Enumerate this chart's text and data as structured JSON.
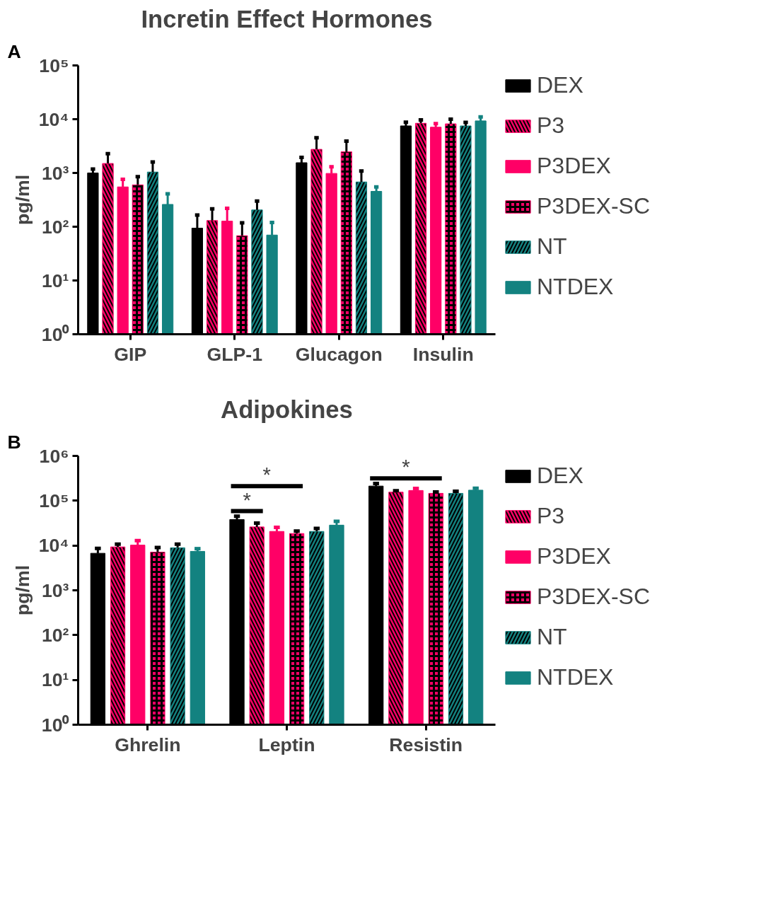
{
  "chart_data": [
    {
      "type": "bar",
      "title": "Incretin Effect Hormones",
      "ylabel": "pg/ml",
      "annotations": [
        "A"
      ],
      "categories": [
        "GIP",
        "GLP-1",
        "Glucagon",
        "Insulin"
      ],
      "log": true,
      "ylim": [
        1,
        100000
      ],
      "yticks": [
        {
          "value": 1,
          "label": "10⁰"
        },
        {
          "value": 10,
          "label": "10¹"
        },
        {
          "value": 100,
          "label": "10²"
        },
        {
          "value": 1000,
          "label": "10³"
        },
        {
          "value": 10000,
          "label": "10⁴"
        },
        {
          "value": 100000,
          "label": "10⁵"
        }
      ],
      "grid": false,
      "legend": "right",
      "series": [
        {
          "name": "DEX",
          "color": "#000000",
          "values": [
            1000,
            94,
            1550,
            7500
          ],
          "errors": [
            [
              1000,
              1180
            ],
            [
              94,
              165
            ],
            [
              1550,
              1950
            ],
            [
              7500,
              8800
            ]
          ]
        },
        {
          "name": "P3",
          "color": "#ff0066",
          "values": [
            1500,
            130,
            2750,
            8400
          ],
          "errors": [
            [
              1500,
              2280
            ],
            [
              130,
              215
            ],
            [
              2750,
              4500
            ],
            [
              8400,
              9700
            ]
          ]
        },
        {
          "name": "P3DEX",
          "color": "#ff0066",
          "values": [
            550,
            127,
            980,
            7100
          ],
          "errors": [
            [
              550,
              760
            ],
            [
              127,
              220
            ],
            [
              980,
              1300
            ],
            [
              7100,
              8300
            ]
          ]
        },
        {
          "name": "P3DEX-SC",
          "color": "#ff0066",
          "values": [
            600,
            68,
            2470,
            8200
          ],
          "errors": [
            [
              600,
              850
            ],
            [
              68,
              118
            ],
            [
              2470,
              3900
            ],
            [
              8200,
              10000
            ]
          ]
        },
        {
          "name": "NT",
          "color": "#138280",
          "values": [
            1040,
            205,
            680,
            7500
          ],
          "errors": [
            [
              1040,
              1600
            ],
            [
              205,
              300
            ],
            [
              680,
              1090
            ],
            [
              7500,
              8700
            ]
          ]
        },
        {
          "name": "NTDEX",
          "color": "#138280",
          "values": [
            260,
            70,
            455,
            9300
          ],
          "errors": [
            [
              260,
              410
            ],
            [
              70,
              120
            ],
            [
              455,
              550
            ],
            [
              9300,
              11000
            ]
          ]
        }
      ]
    },
    {
      "type": "bar",
      "title": "Adipokines",
      "ylabel": "pg/ml",
      "annotations": [
        "B",
        "*",
        "*",
        "*"
      ],
      "categories": [
        "Ghrelin",
        "Leptin",
        "Resistin"
      ],
      "log": true,
      "ylim": [
        1,
        1000000
      ],
      "yticks": [
        {
          "value": 1,
          "label": "10⁰"
        },
        {
          "value": 10,
          "label": "10¹"
        },
        {
          "value": 100,
          "label": "10²"
        },
        {
          "value": 1000,
          "label": "10³"
        },
        {
          "value": 10000,
          "label": "10⁴"
        },
        {
          "value": 100000,
          "label": "10⁵"
        },
        {
          "value": 1000000,
          "label": "10⁶"
        }
      ],
      "grid": false,
      "legend": "right",
      "series": [
        {
          "name": "DEX",
          "color": "#000000",
          "values": [
            6700,
            38000,
            212000
          ],
          "errors": [
            [
              6700,
              8600
            ],
            [
              38000,
              45000
            ],
            [
              212000,
              243000
            ]
          ]
        },
        {
          "name": "P3",
          "color": "#ff0066",
          "values": [
            9300,
            26000,
            155000
          ],
          "errors": [
            [
              9300,
              10700
            ],
            [
              26000,
              31500
            ],
            [
              155000,
              167000
            ]
          ]
        },
        {
          "name": "P3DEX",
          "color": "#ff0066",
          "values": [
            10200,
            20600,
            169000
          ],
          "errors": [
            [
              10200,
              12900
            ],
            [
              20600,
              25500
            ],
            [
              169000,
              188000
            ]
          ]
        },
        {
          "name": "P3DEX-SC",
          "color": "#ff0066",
          "values": [
            7100,
            18500,
            146000
          ],
          "errors": [
            [
              7100,
              9000
            ],
            [
              18500,
              21000
            ],
            [
              146000,
              157000
            ]
          ]
        },
        {
          "name": "NT",
          "color": "#138280",
          "values": [
            8900,
            20600,
            146000
          ],
          "errors": [
            [
              8900,
              10700
            ],
            [
              20600,
              24000
            ],
            [
              146000,
              162000
            ]
          ]
        },
        {
          "name": "NTDEX",
          "color": "#138280",
          "values": [
            7400,
            28500,
            172000
          ],
          "errors": [
            [
              7400,
              8500
            ],
            [
              28500,
              34600
            ],
            [
              172000,
              190000
            ]
          ]
        }
      ]
    }
  ]
}
